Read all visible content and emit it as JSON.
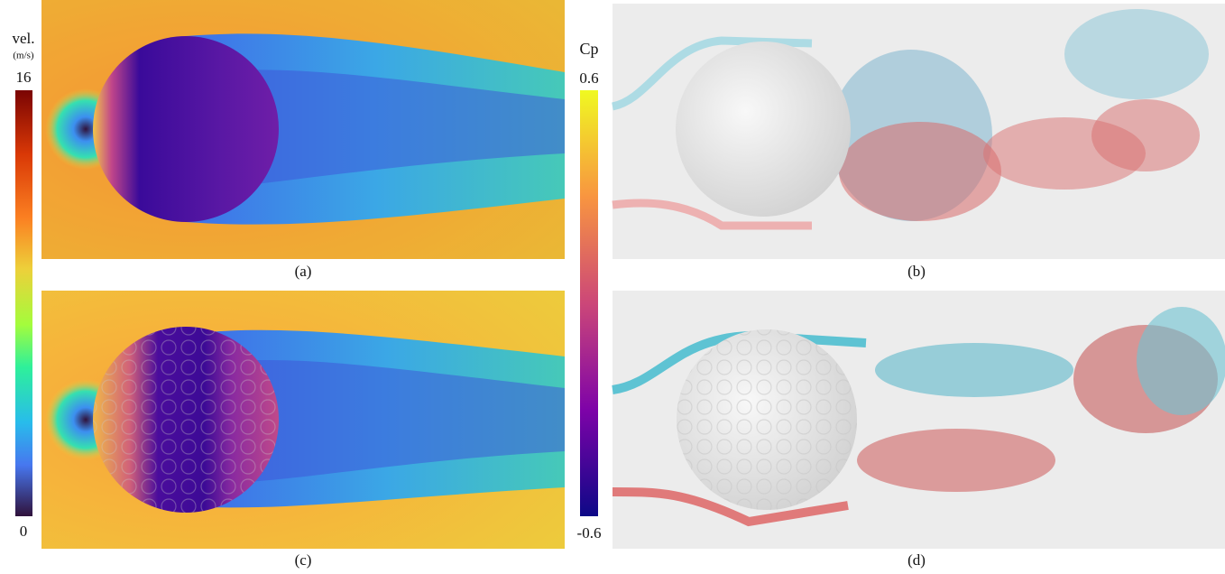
{
  "colorbars": {
    "velocity": {
      "label": "vel.",
      "unit": "(m/s)",
      "max": 16,
      "min": 0
    },
    "pressure": {
      "label": "Cp",
      "max": 0.6,
      "min": -0.6
    }
  },
  "panels": [
    {
      "caption": "(a)"
    },
    {
      "caption": "(b)"
    },
    {
      "caption": "(c)"
    },
    {
      "caption": "(d)"
    }
  ]
}
